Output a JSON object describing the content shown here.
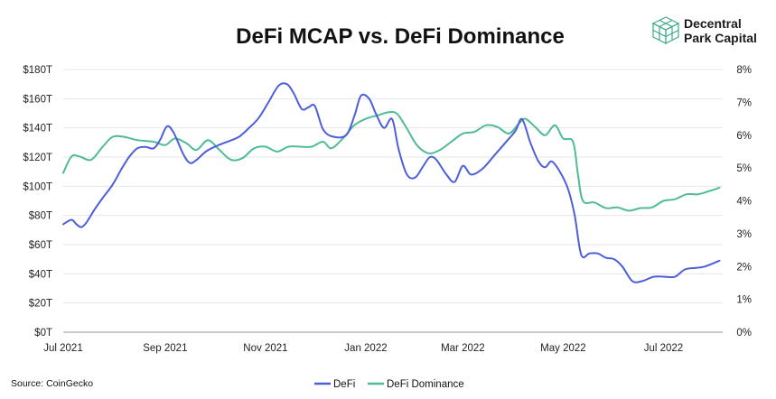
{
  "brand": {
    "line1": "Decentral",
    "line2": "Park Capital",
    "logo_icon": "cube-grid-icon",
    "logo_color": "#3daa8c"
  },
  "source": "Source: CoinGecko",
  "chart_data": {
    "type": "line",
    "title": "DeFi MCAP vs. DeFi Dominance",
    "xlabel": "",
    "ylabel": "",
    "y_left": {
      "ticks": [
        "$0T",
        "$20T",
        "$40T",
        "$60T",
        "$80T",
        "$100T",
        "$120T",
        "$140T",
        "$160T",
        "$180T"
      ],
      "range": [
        0,
        180
      ]
    },
    "y_right": {
      "ticks": [
        "0%",
        "1%",
        "2%",
        "3%",
        "4%",
        "5%",
        "6%",
        "7%",
        "8%"
      ],
      "range": [
        0,
        8
      ]
    },
    "x_ticks": [
      {
        "label": "Jul 2021",
        "date": "2021-07-01"
      },
      {
        "label": "Sep 2021",
        "date": "2021-09-01"
      },
      {
        "label": "Nov 2021",
        "date": "2021-11-01"
      },
      {
        "label": "Jan 2022",
        "date": "2022-01-01"
      },
      {
        "label": "Mar 2022",
        "date": "2022-03-01"
      },
      {
        "label": "May 2022",
        "date": "2022-05-01"
      },
      {
        "label": "Jul 2022",
        "date": "2022-07-01"
      }
    ],
    "x_range": [
      "2021-07-01",
      "2022-08-06"
    ],
    "grid": true,
    "legend_position": "bottom",
    "series": [
      {
        "name": "DeFi",
        "axis": "left",
        "color": "#4c5fd8",
        "points": [
          [
            "2021-07-01",
            74
          ],
          [
            "2021-07-06",
            77
          ],
          [
            "2021-07-09",
            74
          ],
          [
            "2021-07-12",
            72
          ],
          [
            "2021-07-15",
            75
          ],
          [
            "2021-07-20",
            84
          ],
          [
            "2021-07-25",
            92
          ],
          [
            "2021-07-31",
            101
          ],
          [
            "2021-08-05",
            111
          ],
          [
            "2021-08-10",
            120
          ],
          [
            "2021-08-15",
            126
          ],
          [
            "2021-08-20",
            127
          ],
          [
            "2021-08-25",
            126
          ],
          [
            "2021-08-29",
            132
          ],
          [
            "2021-09-02",
            141
          ],
          [
            "2021-09-06",
            137
          ],
          [
            "2021-09-12",
            122
          ],
          [
            "2021-09-16",
            116
          ],
          [
            "2021-09-20",
            118
          ],
          [
            "2021-09-26",
            124
          ],
          [
            "2021-10-03",
            128
          ],
          [
            "2021-10-10",
            131
          ],
          [
            "2021-10-16",
            134
          ],
          [
            "2021-10-22",
            140
          ],
          [
            "2021-10-28",
            147
          ],
          [
            "2021-11-03",
            158
          ],
          [
            "2021-11-09",
            169
          ],
          [
            "2021-11-14",
            170
          ],
          [
            "2021-11-18",
            164
          ],
          [
            "2021-11-23",
            153
          ],
          [
            "2021-11-27",
            154
          ],
          [
            "2021-12-01",
            155
          ],
          [
            "2021-12-06",
            139
          ],
          [
            "2021-12-12",
            134
          ],
          [
            "2021-12-20",
            135
          ],
          [
            "2021-12-25",
            148
          ],
          [
            "2021-12-29",
            162
          ],
          [
            "2022-01-03",
            160
          ],
          [
            "2022-01-07",
            150
          ],
          [
            "2022-01-12",
            140
          ],
          [
            "2022-01-17",
            146
          ],
          [
            "2022-01-21",
            125
          ],
          [
            "2022-01-26",
            108
          ],
          [
            "2022-01-31",
            106
          ],
          [
            "2022-02-05",
            114
          ],
          [
            "2022-02-09",
            120
          ],
          [
            "2022-02-13",
            118
          ],
          [
            "2022-02-19",
            108
          ],
          [
            "2022-02-24",
            103
          ],
          [
            "2022-03-01",
            114
          ],
          [
            "2022-03-06",
            108
          ],
          [
            "2022-03-13",
            112
          ],
          [
            "2022-03-20",
            121
          ],
          [
            "2022-03-27",
            130
          ],
          [
            "2022-04-02",
            138
          ],
          [
            "2022-04-06",
            146
          ],
          [
            "2022-04-11",
            130
          ],
          [
            "2022-04-16",
            117
          ],
          [
            "2022-04-20",
            113
          ],
          [
            "2022-04-24",
            117
          ],
          [
            "2022-04-29",
            110
          ],
          [
            "2022-05-04",
            98
          ],
          [
            "2022-05-08",
            80
          ],
          [
            "2022-05-12",
            53
          ],
          [
            "2022-05-17",
            54
          ],
          [
            "2022-05-22",
            54
          ],
          [
            "2022-05-27",
            51
          ],
          [
            "2022-06-01",
            50
          ],
          [
            "2022-06-06",
            45
          ],
          [
            "2022-06-12",
            35
          ],
          [
            "2022-06-18",
            35
          ],
          [
            "2022-06-25",
            38
          ],
          [
            "2022-07-02",
            38
          ],
          [
            "2022-07-08",
            38
          ],
          [
            "2022-07-14",
            43
          ],
          [
            "2022-07-20",
            44
          ],
          [
            "2022-07-26",
            45
          ],
          [
            "2022-08-04",
            49
          ]
        ]
      },
      {
        "name": "DeFi Dominance",
        "axis": "right",
        "color": "#4fbb97",
        "points": [
          [
            "2021-07-01",
            4.85
          ],
          [
            "2021-07-06",
            5.35
          ],
          [
            "2021-07-11",
            5.35
          ],
          [
            "2021-07-18",
            5.25
          ],
          [
            "2021-07-25",
            5.65
          ],
          [
            "2021-07-31",
            5.95
          ],
          [
            "2021-08-07",
            5.95
          ],
          [
            "2021-08-15",
            5.85
          ],
          [
            "2021-08-25",
            5.8
          ],
          [
            "2021-09-01",
            5.7
          ],
          [
            "2021-09-07",
            5.9
          ],
          [
            "2021-09-14",
            5.75
          ],
          [
            "2021-09-20",
            5.55
          ],
          [
            "2021-09-27",
            5.85
          ],
          [
            "2021-10-04",
            5.55
          ],
          [
            "2021-10-11",
            5.25
          ],
          [
            "2021-10-18",
            5.3
          ],
          [
            "2021-10-25",
            5.6
          ],
          [
            "2021-11-01",
            5.65
          ],
          [
            "2021-11-08",
            5.5
          ],
          [
            "2021-11-15",
            5.65
          ],
          [
            "2021-11-22",
            5.65
          ],
          [
            "2021-11-29",
            5.65
          ],
          [
            "2021-12-06",
            5.8
          ],
          [
            "2021-12-11",
            5.6
          ],
          [
            "2021-12-18",
            5.9
          ],
          [
            "2021-12-25",
            6.3
          ],
          [
            "2022-01-01",
            6.5
          ],
          [
            "2022-01-08",
            6.6
          ],
          [
            "2022-01-15",
            6.7
          ],
          [
            "2022-01-20",
            6.65
          ],
          [
            "2022-01-26",
            6.2
          ],
          [
            "2022-02-01",
            5.7
          ],
          [
            "2022-02-08",
            5.45
          ],
          [
            "2022-02-15",
            5.55
          ],
          [
            "2022-02-22",
            5.8
          ],
          [
            "2022-03-01",
            6.05
          ],
          [
            "2022-03-08",
            6.1
          ],
          [
            "2022-03-15",
            6.3
          ],
          [
            "2022-03-22",
            6.25
          ],
          [
            "2022-03-29",
            6.05
          ],
          [
            "2022-04-04",
            6.35
          ],
          [
            "2022-04-08",
            6.5
          ],
          [
            "2022-04-14",
            6.25
          ],
          [
            "2022-04-20",
            6.0
          ],
          [
            "2022-04-26",
            6.3
          ],
          [
            "2022-05-01",
            5.9
          ],
          [
            "2022-05-07",
            5.8
          ],
          [
            "2022-05-10",
            4.8
          ],
          [
            "2022-05-13",
            4.0
          ],
          [
            "2022-05-20",
            3.95
          ],
          [
            "2022-05-27",
            3.78
          ],
          [
            "2022-06-03",
            3.8
          ],
          [
            "2022-06-10",
            3.7
          ],
          [
            "2022-06-17",
            3.78
          ],
          [
            "2022-06-24",
            3.8
          ],
          [
            "2022-07-01",
            4.0
          ],
          [
            "2022-07-08",
            4.05
          ],
          [
            "2022-07-15",
            4.2
          ],
          [
            "2022-07-22",
            4.2
          ],
          [
            "2022-07-29",
            4.3
          ],
          [
            "2022-08-04",
            4.4
          ]
        ]
      }
    ]
  }
}
